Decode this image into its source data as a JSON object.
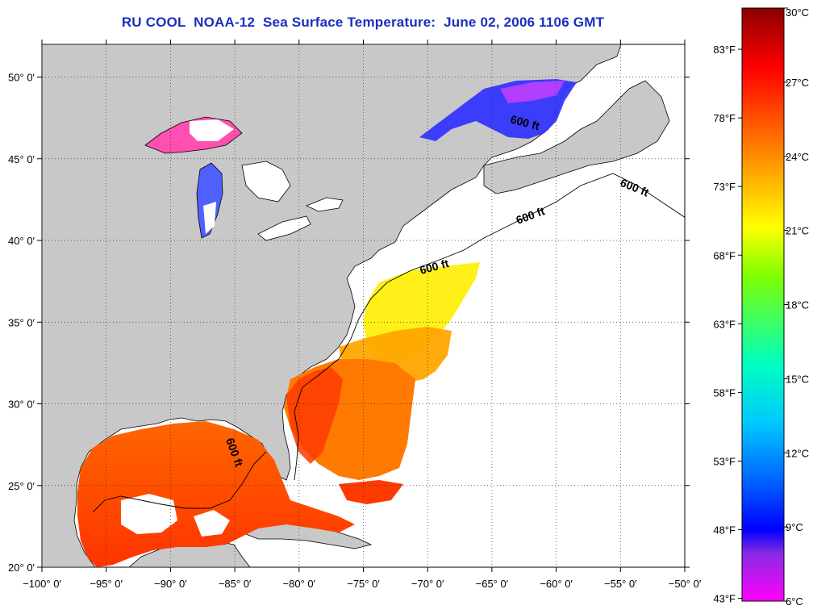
{
  "title": "RU COOL  NOAA-12  Sea Surface Temperature:  June 02, 2006 1106 GMT",
  "map": {
    "lon_ticks": [
      "−100° 0′",
      "−95° 0′",
      "−90° 0′",
      "−85° 0′",
      "−80° 0′",
      "−75° 0′",
      "−70° 0′",
      "−65° 0′",
      "−60° 0′",
      "−55° 0′",
      "−50° 0′"
    ],
    "lat_ticks": [
      "50° 0′",
      "45° 0′",
      "40° 0′",
      "35° 0′",
      "30° 0′",
      "25° 0′",
      "20° 0′"
    ],
    "lon_range": [
      -100,
      -50
    ],
    "lat_range": [
      20,
      52
    ],
    "grid": true,
    "isobath_labels": [
      "600 ft",
      "600 ft",
      "600 ft",
      "600 ft",
      "600 ft"
    ],
    "colors": {
      "land": "#c8c8c8",
      "no_data": "#ffffff",
      "title": "#1a2fbf"
    }
  },
  "colorbar": {
    "fahrenheit_labels": [
      "83°F",
      "78°F",
      "73°F",
      "68°F",
      "63°F",
      "58°F",
      "53°F",
      "48°F",
      "43°F"
    ],
    "celsius_labels": [
      "30°C",
      "27°C",
      "24°C",
      "21°C",
      "18°C",
      "15°C",
      "12°C",
      "9°C",
      "6°C"
    ],
    "fahrenheit_values": [
      83,
      78,
      73,
      68,
      63,
      58,
      53,
      48,
      43
    ],
    "celsius_values": [
      30,
      27,
      24,
      21,
      18,
      15,
      12,
      9,
      6
    ],
    "range_c": [
      6,
      30
    ],
    "stops": [
      "#8b0000",
      "#ff0000",
      "#ff8c00",
      "#ffff00",
      "#80ff00",
      "#00ffc0",
      "#00c8ff",
      "#0060ff",
      "#0000ff",
      "#ff00ff"
    ]
  }
}
